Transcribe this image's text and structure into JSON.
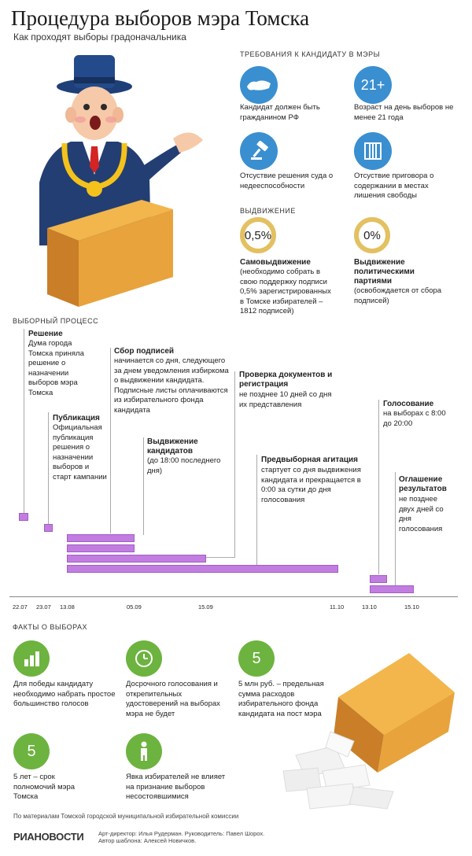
{
  "header": {
    "title": "Процедура выборов мэра Томска",
    "subtitle": "Как проходят выборы градоначальника"
  },
  "requirements": {
    "heading": "ТРЕБОВАНИЯ К КАНДИДАТУ В МЭРЫ",
    "items": [
      {
        "icon": "russia-map-icon",
        "text": "Кандидат должен быть гражданином РФ"
      },
      {
        "icon": "age-21-icon",
        "badge": "21+",
        "text": "Возраст на день выборов не менее 21 года"
      },
      {
        "icon": "gavel-icon",
        "text": "Отсуствие решения суда о недееспособности"
      },
      {
        "icon": "prison-bars-icon",
        "text": "Отсуствие приговора о содержании в местах лишения свободы"
      }
    ]
  },
  "nomination": {
    "heading": "ВЫДВИЖЕНИЕ",
    "self": {
      "value": "0,5%",
      "title": "Самовыдвижение",
      "text": "(необходимо собрать в свою поддержку подписи 0,5% зарегистрированных в Томске избирателей – 1812 подписей)"
    },
    "party": {
      "value": "0%",
      "title": "Выдвижение политическими партиями",
      "text": "(освобождается от сбора подписей)"
    }
  },
  "process": {
    "heading": "ВЫБОРНЫЙ ПРОЦЕСС",
    "steps": [
      {
        "title": "Решение",
        "text": "Дума города Томска приняла решение о назначении выборов мэра Томска"
      },
      {
        "title": "Публикация",
        "text": "Официальная публикация решения о назначении выборов и старт кампании"
      },
      {
        "title": "Сбор подписей",
        "text": "начинается со дня, следующего за днем уведомления избиркома о выдвижении кандидата. Подписные листы оплачиваются из избирательного фонда кандидата"
      },
      {
        "title": "Выдвижение кандидатов",
        "text": "(до 18:00 последнего дня)"
      },
      {
        "title": "Проверка документов и регистрация",
        "text": "не позднее 10 дней со дня их представления"
      },
      {
        "title": "Предвыборная агитация",
        "text": "стартует со дня выдвижения кандидата и прекращается в 0:00 за сутки до дня голосования"
      },
      {
        "title": "Голосование",
        "text": "на выборах с 8:00 до 20:00"
      },
      {
        "title": "Оглашение результатов",
        "text": "не позднее двух дней со дня голосования"
      }
    ],
    "dates": [
      "22.07",
      "23.07",
      "13.08",
      "05.09",
      "15.09",
      "11.10",
      "13.10",
      "15.10"
    ]
  },
  "facts": {
    "heading": "ФАКТЫ О ВЫБОРАХ",
    "items": [
      {
        "icon": "bar-chart-icon",
        "text": "Для победы кандидату необходимо набрать простое большинство голосов"
      },
      {
        "icon": "clock-icon",
        "text": "Досрочного голосования и открепительных удостоверений на выборах мэра не будет"
      },
      {
        "icon": "five-icon",
        "badge": "5",
        "text": "5 млн руб. – предельная сумма расходов избирательного фонда кандидата на пост мэра"
      },
      {
        "icon": "five-years-icon",
        "badge": "5",
        "text": "5 лет – срок полномочий мэра Томска"
      },
      {
        "icon": "voter-person-icon",
        "text": "Явка избирателей не влияет на признание выборов несостоявшимися"
      }
    ]
  },
  "footer": {
    "source": "По материалам Томской городской муниципальной избирательной комиссии",
    "logo": "РИАНОВОСТИ",
    "credits1": "Арт-директор: Илья Рудерман. Руководитель: Павел Шорох.",
    "credits2": "Автор шаблона: Алексей Новичков."
  },
  "colors": {
    "blue": "#3a8fd0",
    "green": "#6db33f",
    "purple": "#c17de0",
    "yellow": "#e3c061",
    "box": "#e8a33c"
  }
}
